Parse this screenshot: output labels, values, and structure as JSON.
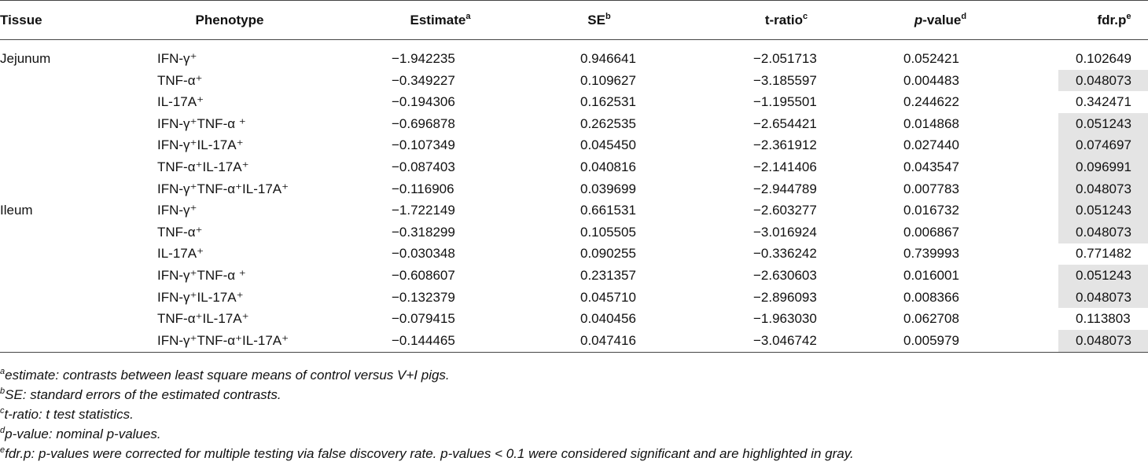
{
  "table": {
    "header": [
      {
        "text": "Tissue"
      },
      {
        "text": "Phenotype"
      },
      {
        "text": "Estimate",
        "sup": "a"
      },
      {
        "text": "SE",
        "sup": "b"
      },
      {
        "text": "t-ratio",
        "sup": "c"
      },
      {
        "text": "p",
        "italic_part": true,
        "rest": "-value",
        "sup": "d"
      },
      {
        "text": "fdr.p",
        "sup": "e"
      }
    ],
    "highlight_color": "#e4e4e4",
    "groups": [
      {
        "tissue": "Jejunum",
        "rows": [
          {
            "cells": [
              "IFN-γ⁺",
              "−1.942235",
              "0.946641",
              "−2.051713",
              "0.052421",
              "0.102649"
            ],
            "highlighted": false
          },
          {
            "cells": [
              "TNF-α⁺",
              "−0.349227",
              "0.109627",
              "−3.185597",
              "0.004483",
              "0.048073"
            ],
            "highlighted": true
          },
          {
            "cells": [
              "IL-17A⁺",
              "−0.194306",
              "0.162531",
              "−1.195501",
              "0.244622",
              "0.342471"
            ],
            "highlighted": false
          },
          {
            "cells": [
              "IFN-γ⁺TNF-α ⁺",
              "−0.696878",
              "0.262535",
              "−2.654421",
              "0.014868",
              "0.051243"
            ],
            "highlighted": true
          },
          {
            "cells": [
              "IFN-γ⁺IL-17A⁺",
              "−0.107349",
              "0.045450",
              "−2.361912",
              "0.027440",
              "0.074697"
            ],
            "highlighted": true
          },
          {
            "cells": [
              "TNF-α⁺IL-17A⁺",
              "−0.087403",
              "0.040816",
              "−2.141406",
              "0.043547",
              "0.096991"
            ],
            "highlighted": true
          },
          {
            "cells": [
              "IFN-γ⁺TNF-α⁺IL-17A⁺",
              "−0.116906",
              "0.039699",
              "−2.944789",
              "0.007783",
              "0.048073"
            ],
            "highlighted": true
          }
        ]
      },
      {
        "tissue": "Ileum",
        "rows": [
          {
            "cells": [
              "IFN-γ⁺",
              "−1.722149",
              "0.661531",
              "−2.603277",
              "0.016732",
              "0.051243"
            ],
            "highlighted": true
          },
          {
            "cells": [
              "TNF-α⁺",
              "−0.318299",
              "0.105505",
              "−3.016924",
              "0.006867",
              "0.048073"
            ],
            "highlighted": true
          },
          {
            "cells": [
              "IL-17A⁺",
              "−0.030348",
              "0.090255",
              "−0.336242",
              "0.739993",
              "0.771482"
            ],
            "highlighted": false
          },
          {
            "cells": [
              "IFN-γ⁺TNF-α ⁺",
              "−0.608607",
              "0.231357",
              "−2.630603",
              "0.016001",
              "0.051243"
            ],
            "highlighted": true
          },
          {
            "cells": [
              "IFN-γ⁺IL-17A⁺",
              "−0.132379",
              "0.045710",
              "−2.896093",
              "0.008366",
              "0.048073"
            ],
            "highlighted": true
          },
          {
            "cells": [
              "TNF-α⁺IL-17A⁺",
              "−0.079415",
              "0.040456",
              "−1.963030",
              "0.062708",
              "0.113803"
            ],
            "highlighted": false
          },
          {
            "cells": [
              "IFN-γ⁺TNF-α⁺IL-17A⁺",
              "−0.144465",
              "0.047416",
              "−3.046742",
              "0.005979",
              "0.048073"
            ],
            "highlighted": true
          }
        ]
      }
    ]
  },
  "footnotes": [
    {
      "mark": "a",
      "text": "estimate: contrasts between least square means of control versus V+I pigs."
    },
    {
      "mark": "b",
      "text": "SE: standard errors of the estimated contrasts."
    },
    {
      "mark": "c",
      "text": "t-ratio: t test statistics."
    },
    {
      "mark": "d",
      "text": "p-value: nominal p-values."
    },
    {
      "mark": "e",
      "text": "fdr.p: p-values were corrected for multiple testing via false discovery rate. p-values < 0.1 were considered significant and are highlighted in gray."
    }
  ]
}
